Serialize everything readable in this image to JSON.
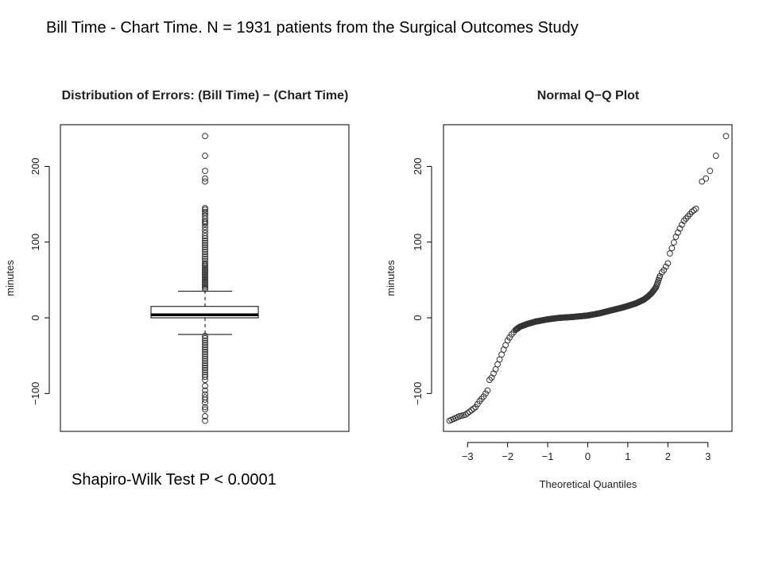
{
  "slide": {
    "title": "Bill Time - Chart Time. N = 1931 patients from the Surgical Outcomes Study",
    "footnote": "Shapiro-Wilk Test P < 0.0001"
  },
  "chart_data": [
    {
      "type": "boxplot",
      "title": "Distribution of Errors: (Bill Time) − (Chart Time)",
      "xlabel": "",
      "ylabel": "minutes",
      "ylim": [
        -150,
        255
      ],
      "yticks": [
        -100,
        0,
        100,
        200
      ],
      "ytick_labels": [
        "−100",
        "0",
        "100",
        "200"
      ],
      "box": {
        "min": -22,
        "q1": 0,
        "median": 4,
        "q3": 15,
        "max": 35
      },
      "outliers": [
        240,
        214,
        194,
        184,
        180,
        145,
        143,
        140,
        138,
        135,
        131,
        128,
        126,
        124,
        120,
        116,
        112,
        108,
        105,
        102,
        99,
        96,
        93,
        90,
        87,
        84,
        81,
        78,
        75,
        72,
        70,
        68,
        66,
        64,
        62,
        60,
        58,
        56,
        54,
        52,
        50,
        48,
        46,
        44,
        42,
        40,
        38,
        -24,
        -27,
        -30,
        -33,
        -36,
        -39,
        -42,
        -45,
        -48,
        -51,
        -54,
        -57,
        -60,
        -63,
        -66,
        -69,
        -72,
        -75,
        -78,
        -82,
        -90,
        -96,
        -101,
        -105,
        -108,
        -112,
        -118,
        -121,
        -130,
        -136
      ]
    },
    {
      "type": "scatter",
      "title": "Normal Q−Q Plot",
      "xlabel": "Theoretical Quantiles",
      "ylabel": "minutes",
      "xlim": [
        -3.6,
        3.6
      ],
      "ylim": [
        -150,
        255
      ],
      "xticks": [
        -3,
        -2,
        -1,
        0,
        1,
        2,
        3
      ],
      "xtick_labels": [
        "−3",
        "−2",
        "−1",
        "0",
        "1",
        "2",
        "3"
      ],
      "yticks": [
        -100,
        0,
        100,
        200
      ],
      "ytick_labels": [
        "−100",
        "0",
        "100",
        "200"
      ],
      "quantile_curve": {
        "x": [
          -3.45,
          -3.2,
          -3.05,
          -2.9,
          -2.8,
          -2.7,
          -2.6,
          -2.5,
          -2.45,
          -2.4,
          -2.3,
          -2.2,
          -2.1,
          -2.0,
          -1.9,
          -1.8,
          -1.7,
          -1.5,
          -1.3,
          -1.0,
          -0.7,
          -0.4,
          0.0,
          0.3,
          0.6,
          0.9,
          1.2,
          1.4,
          1.5,
          1.6,
          1.7,
          1.75,
          1.8,
          1.85,
          1.9,
          2.0,
          2.05,
          2.1,
          2.2,
          2.3,
          2.4,
          2.5,
          2.6,
          2.7
        ],
        "y": [
          -136,
          -130,
          -128,
          -122,
          -118,
          -110,
          -104,
          -96,
          -82,
          -79,
          -68,
          -55,
          -42,
          -30,
          -22,
          -16,
          -12,
          -8,
          -5,
          -2,
          0,
          1,
          3,
          6,
          10,
          14,
          19,
          24,
          28,
          33,
          40,
          47,
          55,
          60,
          63,
          72,
          85,
          92,
          107,
          118,
          128,
          134,
          140,
          144
        ]
      },
      "tail_points": [
        {
          "x": 2.85,
          "y": 180
        },
        {
          "x": 2.95,
          "y": 184
        },
        {
          "x": 3.05,
          "y": 194
        },
        {
          "x": 3.2,
          "y": 214
        },
        {
          "x": 3.45,
          "y": 240
        }
      ]
    }
  ]
}
